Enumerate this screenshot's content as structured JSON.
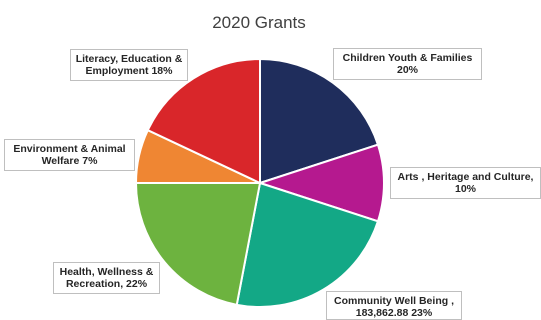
{
  "chart_data": {
    "type": "pie",
    "title": "2020 Grants",
    "slices": [
      {
        "label_lines": [
          "Children Youth & Families",
          "20%"
        ],
        "value": 20,
        "color": "#1f2d5c"
      },
      {
        "label_lines": [
          "Arts , Heritage and Culture,",
          "10%"
        ],
        "value": 10,
        "color": "#b5198f"
      },
      {
        "label_lines": [
          "Community Well Being ,",
          "183,862.88 23%"
        ],
        "value": 23,
        "color": "#13a886"
      },
      {
        "label_lines": [
          "Health, Wellness &",
          "Recreation, 22%"
        ],
        "value": 22,
        "color": "#6db33f"
      },
      {
        "label_lines": [
          "Environment & Animal",
          "Welfare  7%"
        ],
        "value": 7,
        "color": "#ef8633"
      },
      {
        "label_lines": [
          "Literacy, Education &",
          "Employment  18%"
        ],
        "value": 18,
        "color": "#d9262a"
      }
    ]
  }
}
